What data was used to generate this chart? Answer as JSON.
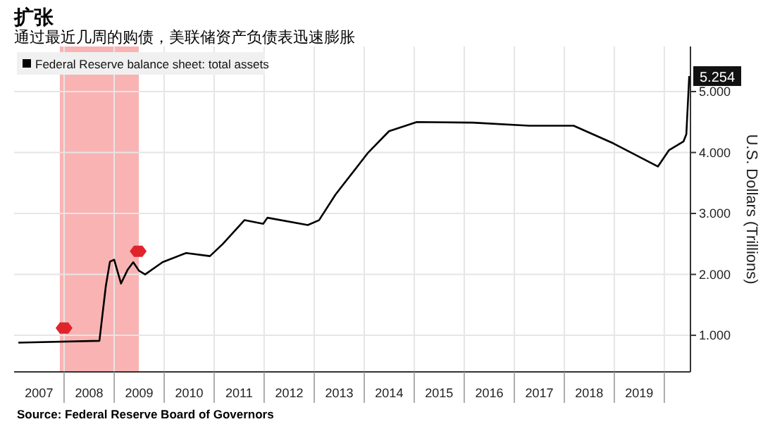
{
  "chart_data": {
    "type": "line",
    "title": "扩张",
    "subtitle": "通过最近几周的购债，美联储资产负债表迅速膨胀",
    "ylabel": "U.S. Dollars (Trillions)",
    "x": [
      "2007-02-01",
      "2008-09-15",
      "2008-11-01",
      "2008-12-01",
      "2009-01-01",
      "2009-02-20",
      "2009-04-10",
      "2009-05-20",
      "2009-07-01",
      "2009-08-15",
      "2009-12-20",
      "2010-06-10",
      "2010-12-01",
      "2011-03-05",
      "2011-08-10",
      "2011-12-25",
      "2012-01-25",
      "2012-11-15",
      "2013-02-05",
      "2013-06-05",
      "2014-01-30",
      "2014-07-01",
      "2015-01-20",
      "2016-03-05",
      "2017-04-20",
      "2018-03-10",
      "2018-12-25",
      "2019-11-15",
      "2020-02-05",
      "2020-05-20",
      "2020-06-10",
      "2020-07-01"
    ],
    "series": [
      {
        "name": "Federal Reserve balance sheet: total assets",
        "color": "#000000",
        "values": [
          0.88,
          0.91,
          1.81,
          2.21,
          2.24,
          1.85,
          2.08,
          2.2,
          2.06,
          2.0,
          2.2,
          2.35,
          2.3,
          2.5,
          2.89,
          2.83,
          2.93,
          2.81,
          2.89,
          3.31,
          4.0,
          4.35,
          4.5,
          4.49,
          4.44,
          4.44,
          4.15,
          3.77,
          4.04,
          4.18,
          4.3,
          5.254
        ]
      }
    ],
    "xlim": [
      "2007-01-01",
      "2020-07-10"
    ],
    "xticks": [
      {
        "value": "2007-07-02",
        "label": "2007"
      },
      {
        "value": "2008-01-01",
        "label": null
      },
      {
        "value": "2008-07-02",
        "label": "2008"
      },
      {
        "value": "2009-01-01",
        "label": null
      },
      {
        "value": "2009-07-02",
        "label": "2009"
      },
      {
        "value": "2010-01-01",
        "label": null
      },
      {
        "value": "2010-07-02",
        "label": "2010"
      },
      {
        "value": "2011-01-01",
        "label": null
      },
      {
        "value": "2011-07-02",
        "label": "2011"
      },
      {
        "value": "2012-01-01",
        "label": null
      },
      {
        "value": "2012-07-02",
        "label": "2012"
      },
      {
        "value": "2013-01-01",
        "label": null
      },
      {
        "value": "2013-07-02",
        "label": "2013"
      },
      {
        "value": "2014-01-01",
        "label": null
      },
      {
        "value": "2014-07-02",
        "label": "2014"
      },
      {
        "value": "2015-01-01",
        "label": null
      },
      {
        "value": "2015-07-02",
        "label": "2015"
      },
      {
        "value": "2016-01-01",
        "label": null
      },
      {
        "value": "2016-07-02",
        "label": "2016"
      },
      {
        "value": "2017-01-01",
        "label": null
      },
      {
        "value": "2017-07-02",
        "label": "2017"
      },
      {
        "value": "2018-01-01",
        "label": null
      },
      {
        "value": "2018-07-02",
        "label": "2018"
      },
      {
        "value": "2019-01-01",
        "label": null
      },
      {
        "value": "2019-07-02",
        "label": "2019"
      },
      {
        "value": "2020-01-01",
        "label": null
      }
    ],
    "ylim": [
      0.4,
      5.74
    ],
    "yticks": [
      {
        "value": 1,
        "label": "1.000"
      },
      {
        "value": 2,
        "label": "2.000"
      },
      {
        "value": 3,
        "label": "3.000"
      },
      {
        "value": 4,
        "label": "4.000"
      },
      {
        "value": 5,
        "label": "5.000"
      }
    ],
    "bands": [
      {
        "axis": "x",
        "from": "2007-12-01",
        "to": "2009-06-30",
        "color": "#f9b3b3"
      }
    ],
    "annotations": [
      {
        "text": "5.254",
        "x": "2020-07-01",
        "y": 5.254
      },
      "Source: Federal Reserve Board of Governors"
    ],
    "grid": true,
    "legend": "top left"
  }
}
